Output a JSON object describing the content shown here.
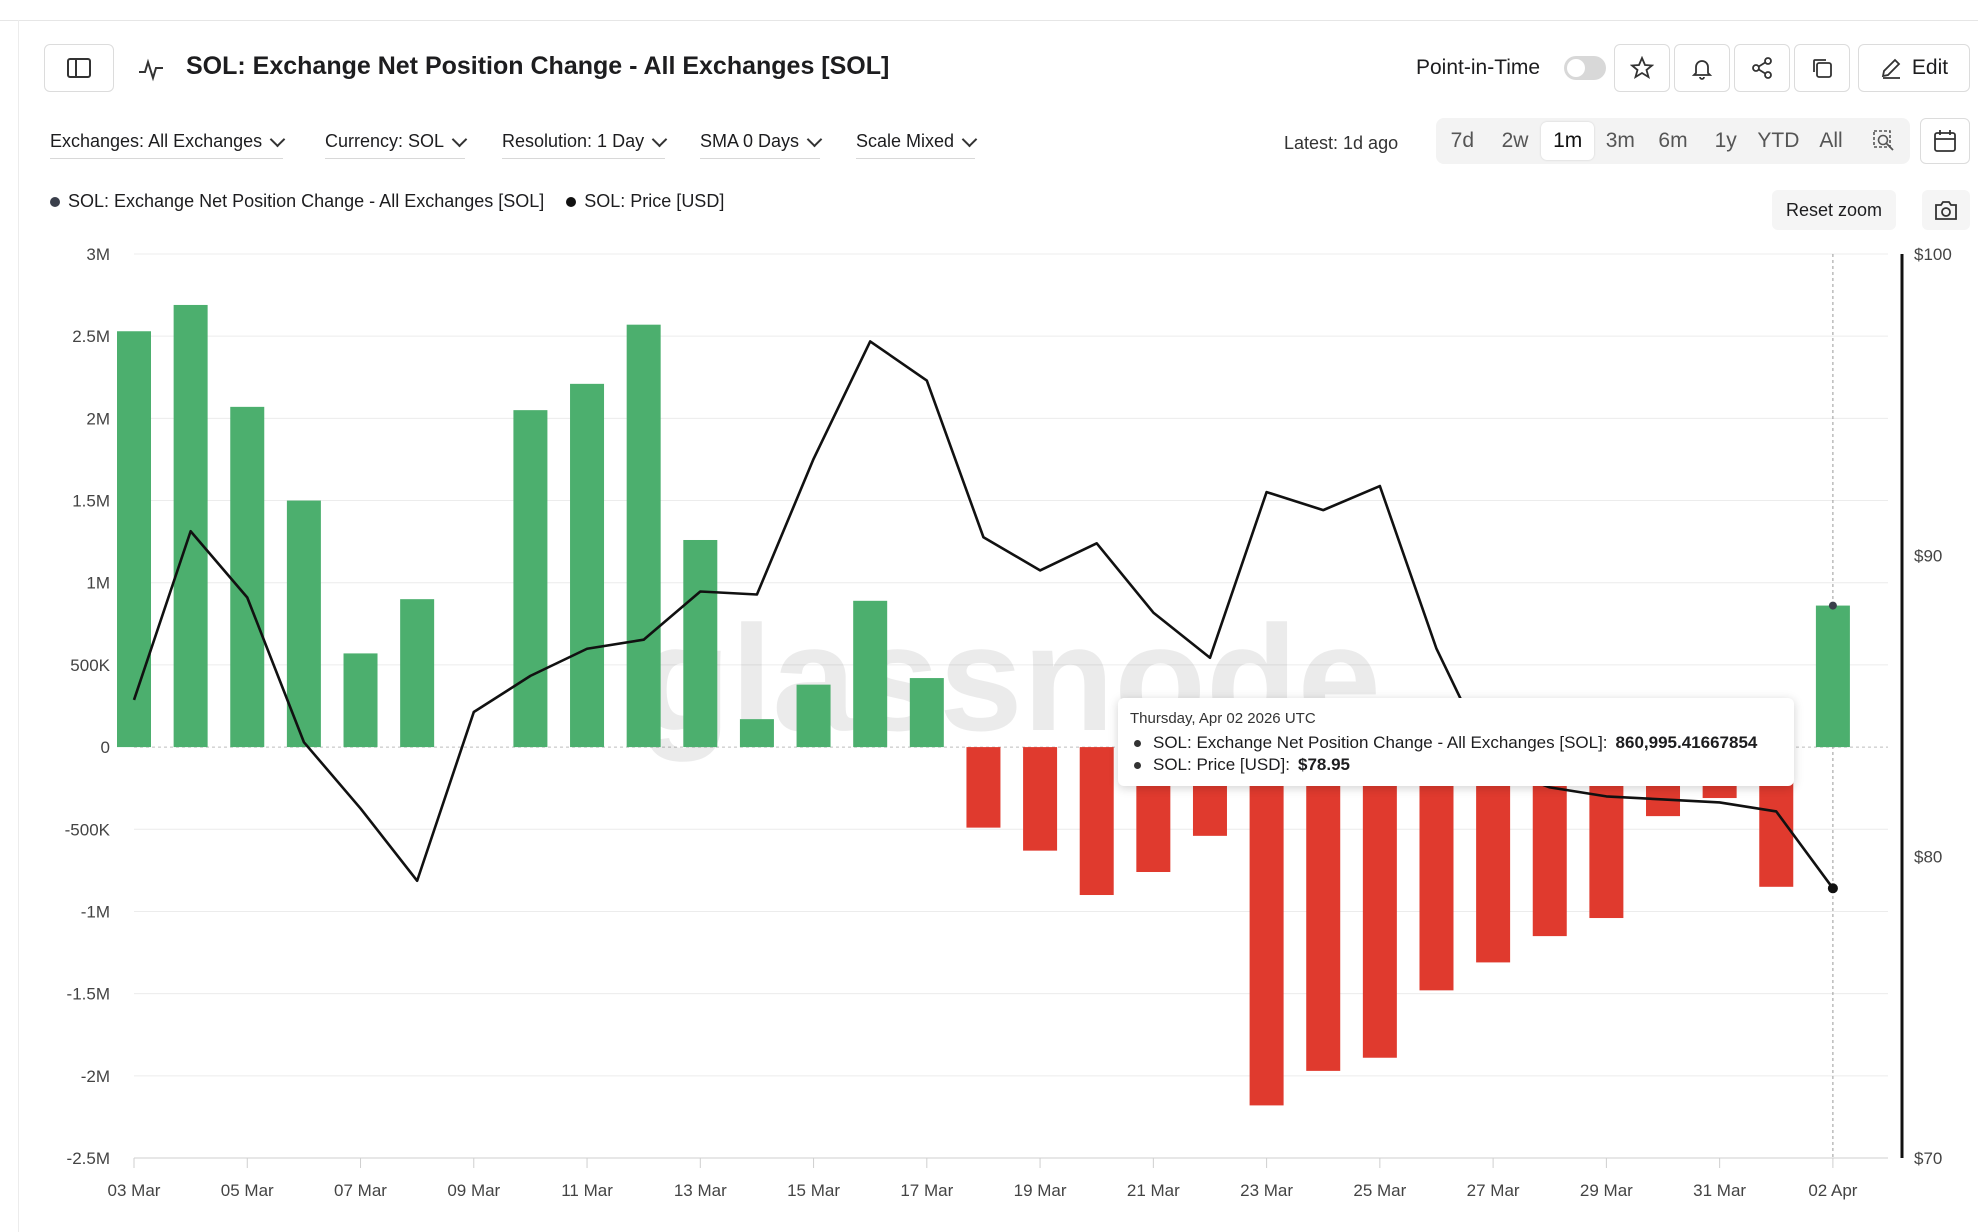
{
  "header": {
    "title": "SOL: Exchange Net Position Change - All Exchanges [SOL]",
    "point_in_time_label": "Point-in-Time",
    "edit_label": "Edit"
  },
  "filters": {
    "exchanges": "Exchanges: All Exchanges",
    "currency": "Currency: SOL",
    "resolution": "Resolution: 1 Day",
    "sma": "SMA 0 Days",
    "scale": "Scale Mixed",
    "latest": "Latest: 1d ago"
  },
  "ranges": [
    "7d",
    "2w",
    "1m",
    "3m",
    "6m",
    "1y",
    "YTD",
    "All"
  ],
  "active_range": "1m",
  "reset_zoom_label": "Reset zoom",
  "legend": [
    {
      "label": "SOL: Exchange Net Position Change - All Exchanges [SOL]",
      "color": "#3a3f4b"
    },
    {
      "label": "SOL: Price [USD]",
      "color": "#111111"
    }
  ],
  "watermark": "glassnode",
  "tooltip": {
    "date": "Thursday, Apr 02 2026 UTC",
    "row1_label": "SOL: Exchange Net Position Change - All Exchanges [SOL]:",
    "row1_value": "860,995.41667854",
    "row2_label": "SOL: Price [USD]:",
    "row2_value": "$78.95"
  },
  "chart_data": {
    "type": "bar",
    "x_tick_labels": [
      "03 Mar",
      "05 Mar",
      "07 Mar",
      "09 Mar",
      "11 Mar",
      "13 Mar",
      "15 Mar",
      "17 Mar",
      "19 Mar",
      "21 Mar",
      "23 Mar",
      "25 Mar",
      "27 Mar",
      "29 Mar",
      "31 Mar",
      "02 Apr"
    ],
    "y_left_ticks": [
      "3M",
      "2.5M",
      "2M",
      "1.5M",
      "1M",
      "500K",
      "0",
      "-500K",
      "-1M",
      "-1.5M",
      "-2M",
      "-2.5M"
    ],
    "y_right_ticks": [
      "$100",
      "$90",
      "$80",
      "$70"
    ],
    "ylim": [
      -2500000,
      3000000
    ],
    "y2lim": [
      70,
      100
    ],
    "positive_color": "#4caf6e",
    "negative_color": "#e03a2e",
    "dates": [
      "03 Mar",
      "04 Mar",
      "05 Mar",
      "06 Mar",
      "07 Mar",
      "08 Mar",
      "09 Mar",
      "10 Mar",
      "11 Mar",
      "12 Mar",
      "13 Mar",
      "14 Mar",
      "15 Mar",
      "16 Mar",
      "17 Mar",
      "18 Mar",
      "19 Mar",
      "20 Mar",
      "21 Mar",
      "22 Mar",
      "23 Mar",
      "24 Mar",
      "25 Mar",
      "26 Mar",
      "27 Mar",
      "28 Mar",
      "29 Mar",
      "30 Mar",
      "31 Mar",
      "01 Apr",
      "02 Apr"
    ],
    "series": [
      {
        "name": "SOL: Exchange Net Position Change - All Exchanges [SOL]",
        "type": "bar",
        "values": [
          2530000,
          2690000,
          2070000,
          1500000,
          570000,
          900000,
          0,
          2050000,
          2210000,
          2570000,
          1260000,
          170000,
          380000,
          890000,
          420000,
          -490000,
          -630000,
          -900000,
          -760000,
          -540000,
          -2180000,
          -1970000,
          -1890000,
          -1480000,
          -1310000,
          -1150000,
          -1040000,
          -420000,
          -310000,
          -850000,
          860995
        ]
      },
      {
        "name": "SOL: Price [USD]",
        "type": "line",
        "values": [
          85.2,
          90.8,
          88.6,
          83.8,
          81.6,
          79.2,
          84.8,
          86.0,
          86.9,
          87.2,
          88.8,
          88.7,
          93.2,
          97.1,
          95.8,
          90.6,
          89.5,
          90.4,
          88.1,
          86.6,
          92.1,
          91.5,
          92.3,
          86.9,
          83.0,
          82.3,
          82.0,
          81.9,
          81.8,
          81.5,
          78.95
        ]
      }
    ]
  }
}
